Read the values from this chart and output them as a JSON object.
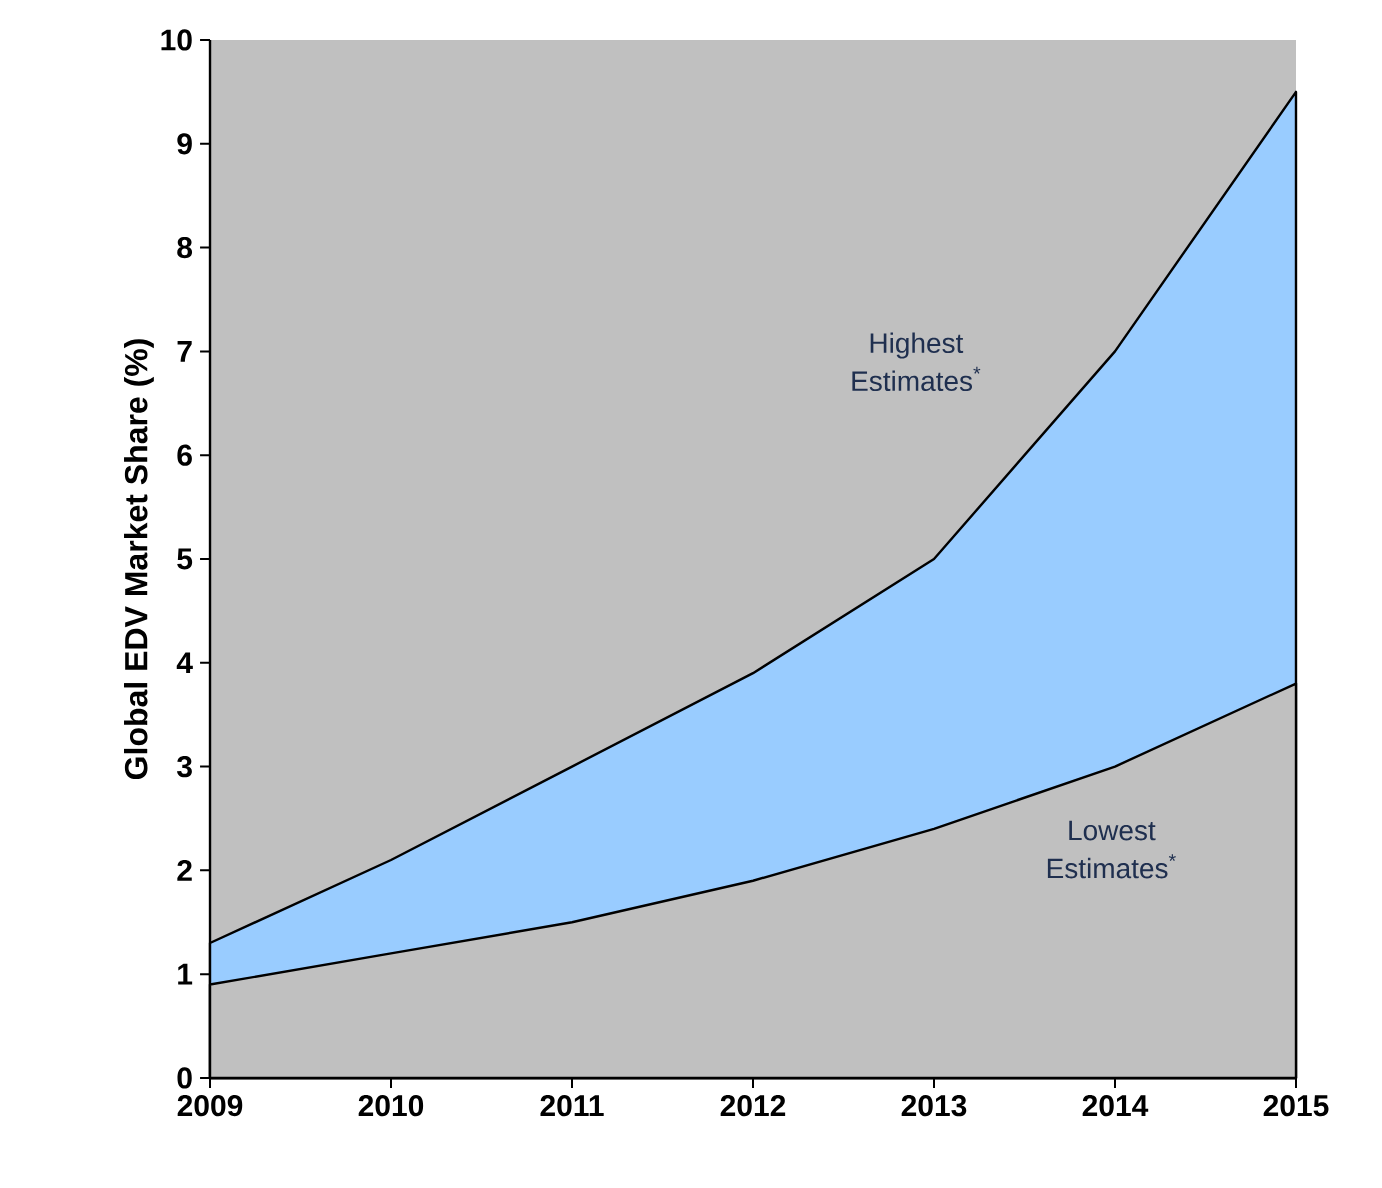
{
  "chart_data": {
    "type": "area",
    "ylabel": "Global EDV Market Share (%)",
    "x": [
      2009,
      2010,
      2011,
      2012,
      2013,
      2014,
      2015
    ],
    "series": [
      {
        "color": "#99ccff",
        "values": [
          1.3,
          2.1,
          3.0,
          3.9,
          5.0,
          7.0,
          9.5
        ]
      },
      {
        "color": "#c0c0c0",
        "values": [
          0.9,
          1.2,
          1.5,
          1.9,
          2.4,
          3.0,
          3.8
        ]
      }
    ],
    "xlim": [
      2009,
      2015
    ],
    "xticks": [
      2009,
      2010,
      2011,
      2012,
      2013,
      2014,
      2015
    ],
    "ylim": [
      0,
      10
    ],
    "yticks": [
      0,
      1,
      2,
      3,
      4,
      5,
      6,
      7,
      8,
      9,
      10
    ],
    "annotations": [
      "Highest Estimates$^{*}$",
      "Lowest Estimates$^{*}$"
    ],
    "grid": false
  }
}
